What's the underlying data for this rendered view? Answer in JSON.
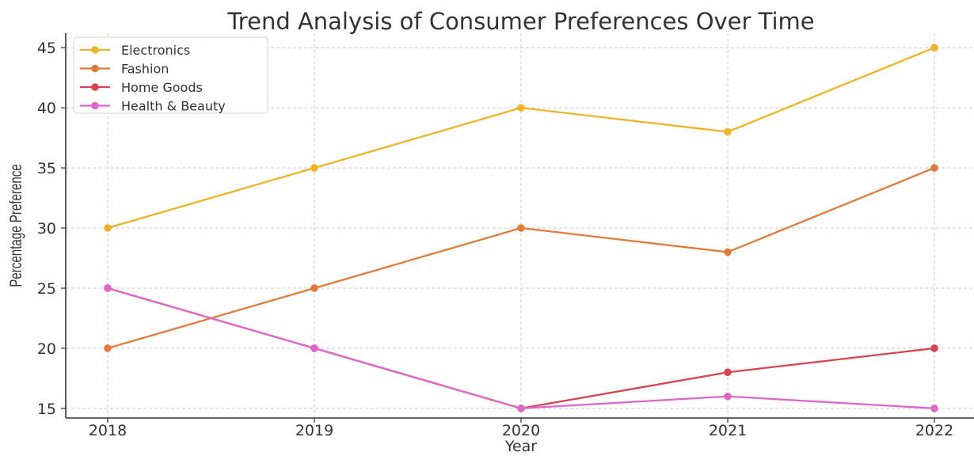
{
  "chart_data": {
    "type": "line",
    "title": "Trend Analysis of Consumer Preferences Over Time",
    "xlabel": "Year",
    "ylabel": "Percentage Preference",
    "x": [
      "2018",
      "2019",
      "2020",
      "2021",
      "2022"
    ],
    "yticks": [
      15,
      20,
      25,
      30,
      35,
      40,
      45
    ],
    "ylim": [
      14.2,
      46.2
    ],
    "grid": true,
    "legend_position": "top-left",
    "series": [
      {
        "name": "Electronics",
        "color": "#F0B323",
        "values": [
          30,
          35,
          40,
          38,
          45
        ]
      },
      {
        "name": "Fashion",
        "color": "#E07B39",
        "values": [
          20,
          25,
          30,
          28,
          35
        ]
      },
      {
        "name": "Home Goods",
        "color": "#D9434E",
        "values": [
          25,
          20,
          15,
          18,
          20
        ]
      },
      {
        "name": "Health & Beauty",
        "color": "#E066C8",
        "values": [
          25,
          20,
          15,
          16,
          15
        ]
      }
    ]
  }
}
